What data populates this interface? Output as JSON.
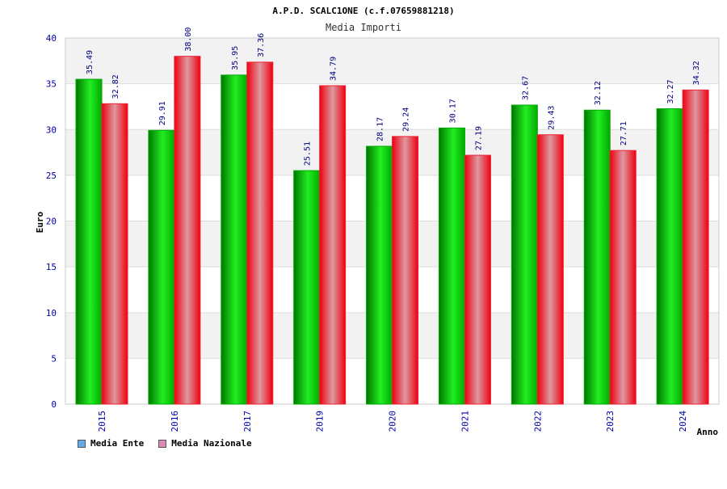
{
  "chart_data": {
    "type": "bar",
    "title": "A.P.D. SCALC1ONE (c.f.07659881218)",
    "subtitle": "Media Importi",
    "xlabel": "Anno",
    "ylabel": "Euro",
    "ylim": [
      0,
      40
    ],
    "yticks": [
      0,
      5,
      10,
      15,
      20,
      25,
      30,
      35,
      40
    ],
    "categories": [
      "2015",
      "2016",
      "2017",
      "2019",
      "2020",
      "2021",
      "2022",
      "2023",
      "2024"
    ],
    "series": [
      {
        "name": "Media Ente",
        "values": [
          35.49,
          29.91,
          35.95,
          25.51,
          28.17,
          30.17,
          32.67,
          32.12,
          32.27
        ],
        "labels": [
          "35.49",
          "29.91",
          "35.95",
          "25.51",
          "28.17",
          "30.17",
          "32.67",
          "32.12",
          "32.27"
        ]
      },
      {
        "name": "Media Nazionale",
        "values": [
          32.82,
          38.0,
          37.36,
          34.79,
          29.24,
          27.19,
          29.43,
          27.71,
          34.32
        ],
        "labels": [
          "32.82",
          "38.00",
          "37.36",
          "34.79",
          "29.24",
          "27.19",
          "29.43",
          "27.71",
          "34.32"
        ]
      }
    ],
    "legend": [
      {
        "label": "Media Ente",
        "color": "#66aaee"
      },
      {
        "label": "Media Nazionale",
        "color": "#dd88bb"
      }
    ],
    "colors": {
      "series0_dark": "#008800",
      "series0_light": "#33ff33",
      "series1_dark": "#ee0011",
      "series1_light": "#dd8899",
      "axis_text": "#0000aa",
      "grid_band": "#f2f2f2"
    }
  }
}
